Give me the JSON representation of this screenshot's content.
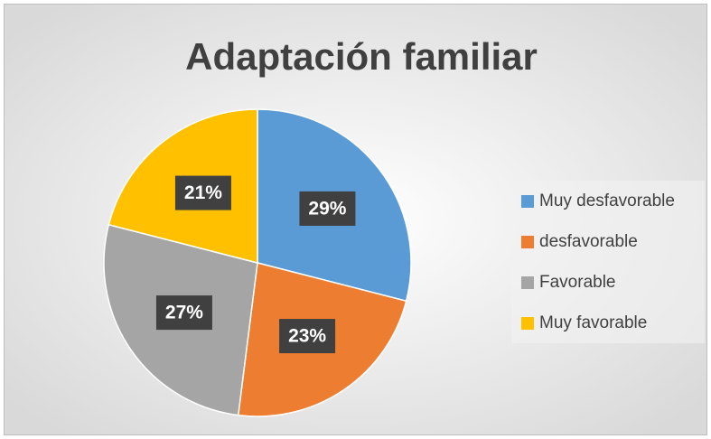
{
  "chart_data": {
    "type": "pie",
    "title": "Adaptación familiar",
    "categories": [
      "Muy desfavorable",
      "desfavorable",
      "Favorable",
      "Muy favorable"
    ],
    "values": [
      29,
      23,
      27,
      21
    ],
    "value_labels": [
      "29%",
      "23%",
      "27%",
      "21%"
    ],
    "colors": [
      "#5b9bd5",
      "#ed7d31",
      "#a5a5a5",
      "#ffc000"
    ],
    "legend": "right"
  }
}
